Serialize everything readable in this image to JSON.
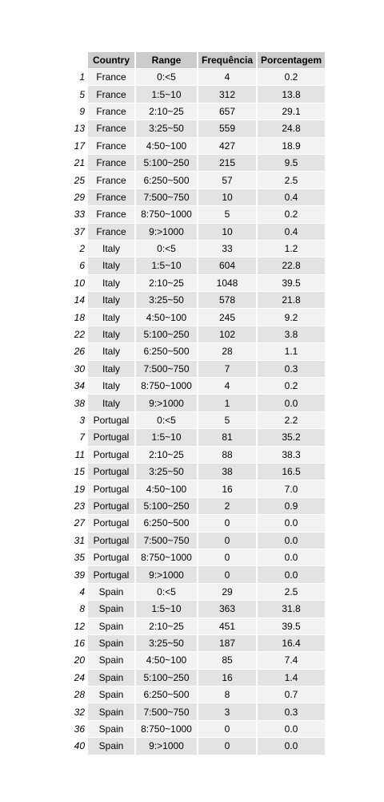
{
  "table": {
    "headers": [
      "",
      "Country",
      "Range",
      "Frequência",
      "Porcentagem"
    ],
    "rows": [
      [
        "1",
        "France",
        "0:<5",
        "4",
        "0.2"
      ],
      [
        "5",
        "France",
        "1:5~10",
        "312",
        "13.8"
      ],
      [
        "9",
        "France",
        "2:10~25",
        "657",
        "29.1"
      ],
      [
        "13",
        "France",
        "3:25~50",
        "559",
        "24.8"
      ],
      [
        "17",
        "France",
        "4:50~100",
        "427",
        "18.9"
      ],
      [
        "21",
        "France",
        "5:100~250",
        "215",
        "9.5"
      ],
      [
        "25",
        "France",
        "6:250~500",
        "57",
        "2.5"
      ],
      [
        "29",
        "France",
        "7:500~750",
        "10",
        "0.4"
      ],
      [
        "33",
        "France",
        "8:750~1000",
        "5",
        "0.2"
      ],
      [
        "37",
        "France",
        "9:>1000",
        "10",
        "0.4"
      ],
      [
        "2",
        "Italy",
        "0:<5",
        "33",
        "1.2"
      ],
      [
        "6",
        "Italy",
        "1:5~10",
        "604",
        "22.8"
      ],
      [
        "10",
        "Italy",
        "2:10~25",
        "1048",
        "39.5"
      ],
      [
        "14",
        "Italy",
        "3:25~50",
        "578",
        "21.8"
      ],
      [
        "18",
        "Italy",
        "4:50~100",
        "245",
        "9.2"
      ],
      [
        "22",
        "Italy",
        "5:100~250",
        "102",
        "3.8"
      ],
      [
        "26",
        "Italy",
        "6:250~500",
        "28",
        "1.1"
      ],
      [
        "30",
        "Italy",
        "7:500~750",
        "7",
        "0.3"
      ],
      [
        "34",
        "Italy",
        "8:750~1000",
        "4",
        "0.2"
      ],
      [
        "38",
        "Italy",
        "9:>1000",
        "1",
        "0.0"
      ],
      [
        "3",
        "Portugal",
        "0:<5",
        "5",
        "2.2"
      ],
      [
        "7",
        "Portugal",
        "1:5~10",
        "81",
        "35.2"
      ],
      [
        "11",
        "Portugal",
        "2:10~25",
        "88",
        "38.3"
      ],
      [
        "15",
        "Portugal",
        "3:25~50",
        "38",
        "16.5"
      ],
      [
        "19",
        "Portugal",
        "4:50~100",
        "16",
        "7.0"
      ],
      [
        "23",
        "Portugal",
        "5:100~250",
        "2",
        "0.9"
      ],
      [
        "27",
        "Portugal",
        "6:250~500",
        "0",
        "0.0"
      ],
      [
        "31",
        "Portugal",
        "7:500~750",
        "0",
        "0.0"
      ],
      [
        "35",
        "Portugal",
        "8:750~1000",
        "0",
        "0.0"
      ],
      [
        "39",
        "Portugal",
        "9:>1000",
        "0",
        "0.0"
      ],
      [
        "4",
        "Spain",
        "0:<5",
        "29",
        "2.5"
      ],
      [
        "8",
        "Spain",
        "1:5~10",
        "363",
        "31.8"
      ],
      [
        "12",
        "Spain",
        "2:10~25",
        "451",
        "39.5"
      ],
      [
        "16",
        "Spain",
        "3:25~50",
        "187",
        "16.4"
      ],
      [
        "20",
        "Spain",
        "4:50~100",
        "85",
        "7.4"
      ],
      [
        "24",
        "Spain",
        "5:100~250",
        "16",
        "1.4"
      ],
      [
        "28",
        "Spain",
        "6:250~500",
        "8",
        "0.7"
      ],
      [
        "32",
        "Spain",
        "7:500~750",
        "3",
        "0.3"
      ],
      [
        "36",
        "Spain",
        "8:750~1000",
        "0",
        "0.0"
      ],
      [
        "40",
        "Spain",
        "9:>1000",
        "0",
        "0.0"
      ]
    ]
  },
  "colors": {
    "header_bg": "#cccccc",
    "row_light": "#f2f2f2",
    "row_dark": "#e3e3e3"
  }
}
